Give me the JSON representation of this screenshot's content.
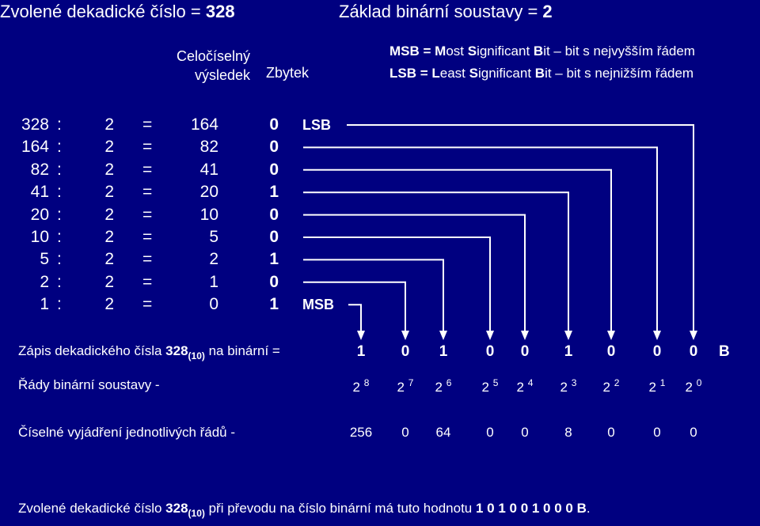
{
  "title": {
    "decimal_label": "Zvolené dekadické číslo = ",
    "decimal_value": "328",
    "base_label": "Základ binární soustavy = ",
    "base_value": "2"
  },
  "headers": {
    "result_line1": "Celočíselný",
    "result_line2": "výsledek",
    "remainder": "Zbytek"
  },
  "legend": {
    "msb": {
      "abbr": "MSB",
      "eq": " = ",
      "w1b": "M",
      "w1": "ost ",
      "w2b": "S",
      "w2": "ignificant ",
      "w3b": "B",
      "w3": "it",
      "desc": " – bit s nejvyšším řádem"
    },
    "lsb": {
      "abbr": "LSB",
      "eq": " = ",
      "w1b": "L",
      "w1": "east ",
      "w2b": "S",
      "w2": "ignificant ",
      "w3b": "B",
      "w3": "it",
      "desc": " – bit s nejnižším řádem"
    }
  },
  "division_rows": [
    {
      "dividend": "328",
      "colon": ":",
      "divisor": "2",
      "eq": "=",
      "quotient": "164",
      "remainder": "0",
      "tag": "LSB"
    },
    {
      "dividend": "164",
      "colon": ":",
      "divisor": "2",
      "eq": "=",
      "quotient": "82",
      "remainder": "0",
      "tag": ""
    },
    {
      "dividend": "82",
      "colon": ":",
      "divisor": "2",
      "eq": "=",
      "quotient": "41",
      "remainder": "0",
      "tag": ""
    },
    {
      "dividend": "41",
      "colon": ":",
      "divisor": "2",
      "eq": "=",
      "quotient": "20",
      "remainder": "1",
      "tag": ""
    },
    {
      "dividend": "20",
      "colon": ":",
      "divisor": "2",
      "eq": "=",
      "quotient": "10",
      "remainder": "0",
      "tag": ""
    },
    {
      "dividend": "10",
      "colon": ":",
      "divisor": "2",
      "eq": "=",
      "quotient": "5",
      "remainder": "0",
      "tag": ""
    },
    {
      "dividend": "5",
      "colon": ":",
      "divisor": "2",
      "eq": "=",
      "quotient": "2",
      "remainder": "1",
      "tag": ""
    },
    {
      "dividend": "2",
      "colon": ":",
      "divisor": "2",
      "eq": "=",
      "quotient": "1",
      "remainder": "0",
      "tag": ""
    },
    {
      "dividend": "1",
      "colon": ":",
      "divisor": "2",
      "eq": "=",
      "quotient": "0",
      "remainder": "1",
      "tag": "MSB"
    }
  ],
  "binary_row": {
    "label_pre": "Zápis dekadického čísla ",
    "label_num": "328",
    "label_sub": "(10)",
    "label_post": " na binární =",
    "digits": [
      "1",
      "0",
      "1",
      "0",
      "0",
      "1",
      "0",
      "0",
      "0"
    ],
    "suffix": "B"
  },
  "powers_row": {
    "label": "Řády binární soustavy -",
    "base": "2",
    "exponents": [
      "8",
      "7",
      "6",
      "5",
      "4",
      "3",
      "2",
      "1",
      "0"
    ]
  },
  "values_row": {
    "label": "Číselné vyjádření jednotlivých řádů -",
    "values": [
      "256",
      "0",
      "64",
      "0",
      "0",
      "8",
      "0",
      "0",
      "0"
    ]
  },
  "footer": {
    "pre": "Zvolené dekadické číslo ",
    "num": "328",
    "sub": "(10)",
    "mid": " při převodu na číslo binární má tuto hodnotu ",
    "result": "1 0 1 0 0 1 0 0 0 B",
    "end": "."
  }
}
